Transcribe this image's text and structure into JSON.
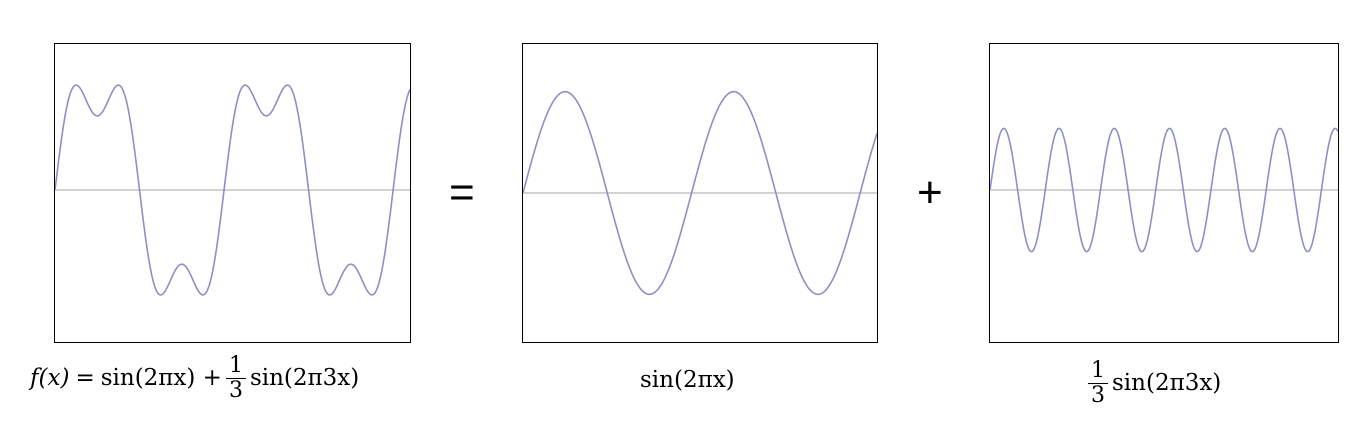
{
  "colors": {
    "wave": "#8c8fc6",
    "axis": "#c4c4c4",
    "frame": "#000000",
    "background": "#ffffff"
  },
  "operators": {
    "equals": "=",
    "plus": "+"
  },
  "captions": {
    "sum": {
      "fx": "f(x)",
      "eq": "=",
      "term1": "sin(2πx) +",
      "frac_num": "1",
      "frac_den": "3",
      "term2": "sin(2π3x)"
    },
    "fundamental": {
      "text": "sin(2πx)"
    },
    "harmonic": {
      "frac_num": "1",
      "frac_den": "3",
      "text": "sin(2π3x)"
    }
  },
  "chart_data": [
    {
      "type": "line",
      "series": [
        {
          "function": "sin(2πx) + (1/3)·sin(2π·3x)",
          "x_range": [
            0,
            2.1
          ]
        }
      ],
      "grid": false
    },
    {
      "type": "line",
      "series": [
        {
          "function": "sin(2πx)",
          "x_range": [
            0,
            2.1
          ]
        }
      ],
      "grid": false
    },
    {
      "type": "line",
      "series": [
        {
          "function": "(1/3)·sin(2π·3x)",
          "x_range": [
            0,
            2.1
          ]
        }
      ],
      "grid": false
    }
  ]
}
